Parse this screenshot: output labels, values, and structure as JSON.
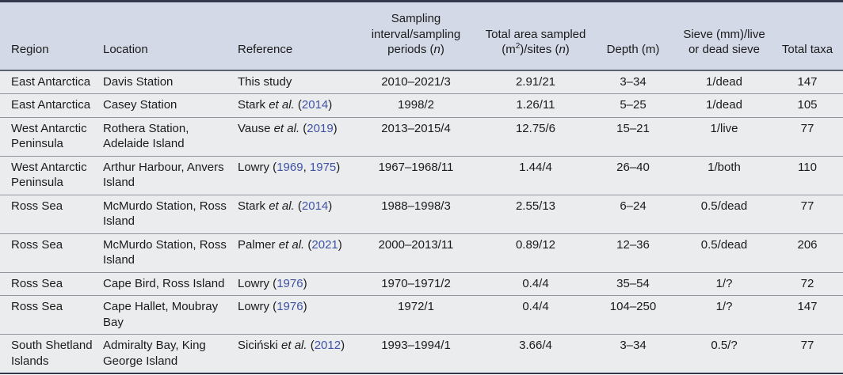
{
  "colors": {
    "header_bg": "#d3d9e6",
    "row_bg": "#ebecee",
    "border_dark": "#323a4b",
    "header_divider": "#5d6470",
    "divider": "#8f949d",
    "link": "#3e53a6",
    "text": "#1b1b1b"
  },
  "table": {
    "columns": [
      {
        "key": "region",
        "label": "Region",
        "align": "left"
      },
      {
        "key": "location",
        "label": "Location",
        "align": "left"
      },
      {
        "key": "reference",
        "label": "Reference",
        "align": "left"
      },
      {
        "key": "sampling",
        "label": "Sampling interval/sampling periods ({n})",
        "align": "center"
      },
      {
        "key": "area",
        "label": "Total area sampled (m{2})/sites ({n})",
        "align": "center"
      },
      {
        "key": "depth",
        "label": "Depth (m)",
        "align": "center"
      },
      {
        "key": "sieve",
        "label": "Sieve (mm)/live or dead sieve",
        "align": "center"
      },
      {
        "key": "taxa",
        "label": "Total taxa",
        "align": "center"
      }
    ],
    "rows": [
      {
        "region": "East Antarctica",
        "location": "Davis Station",
        "reference": {
          "author": "This study",
          "etal": false,
          "years": []
        },
        "sampling": "2010–2021/3",
        "area": "2.91/21",
        "depth": "3–34",
        "sieve": "1/dead",
        "taxa": "147"
      },
      {
        "region": "East Antarctica",
        "location": "Casey Station",
        "reference": {
          "author": "Stark",
          "etal": true,
          "years": [
            "2014"
          ]
        },
        "sampling": "1998/2",
        "area": "1.26/11",
        "depth": "5–25",
        "sieve": "1/dead",
        "taxa": "105"
      },
      {
        "region": "West Antarctic Peninsula",
        "location": "Rothera Station, Adelaide Island",
        "reference": {
          "author": "Vause",
          "etal": true,
          "years": [
            "2019"
          ]
        },
        "sampling": "2013–2015/4",
        "area": "12.75/6",
        "depth": "15–21",
        "sieve": "1/live",
        "taxa": "77"
      },
      {
        "region": "West Antarctic Peninsula",
        "location": "Arthur Harbour, Anvers Island",
        "reference": {
          "author": "Lowry",
          "etal": false,
          "years": [
            "1969",
            "1975"
          ]
        },
        "sampling": "1967–1968/11",
        "area": "1.44/4",
        "depth": "26–40",
        "sieve": "1/both",
        "taxa": "110"
      },
      {
        "region": "Ross Sea",
        "location": "McMurdo Station, Ross Island",
        "reference": {
          "author": "Stark",
          "etal": true,
          "years": [
            "2014"
          ]
        },
        "sampling": "1988–1998/3",
        "area": "2.55/13",
        "depth": "6–24",
        "sieve": "0.5/dead",
        "taxa": "77"
      },
      {
        "region": "Ross Sea",
        "location": "McMurdo Station, Ross Island",
        "reference": {
          "author": "Palmer",
          "etal": true,
          "years": [
            "2021"
          ]
        },
        "sampling": "2000–2013/11",
        "area": "0.89/12",
        "depth": "12–36",
        "sieve": "0.5/dead",
        "taxa": "206"
      },
      {
        "region": "Ross Sea",
        "location": "Cape Bird, Ross Island",
        "reference": {
          "author": "Lowry",
          "etal": false,
          "years": [
            "1976"
          ]
        },
        "sampling": "1970–1971/2",
        "area": "0.4/4",
        "depth": "35–54",
        "sieve": "1/?",
        "taxa": "72"
      },
      {
        "region": "Ross Sea",
        "location": "Cape Hallet, Moubray Bay",
        "reference": {
          "author": "Lowry",
          "etal": false,
          "years": [
            "1976"
          ]
        },
        "sampling": "1972/1",
        "area": "0.4/4",
        "depth": "104–250",
        "sieve": "1/?",
        "taxa": "147"
      },
      {
        "region": "South Shetland Islands",
        "location": "Admiralty Bay, King George Island",
        "reference": {
          "author": "Siciński",
          "etal": true,
          "years": [
            "2012"
          ]
        },
        "sampling": "1993–1994/1",
        "area": "3.66/4",
        "depth": "3–34",
        "sieve": "0.5/?",
        "taxa": "77"
      }
    ]
  }
}
